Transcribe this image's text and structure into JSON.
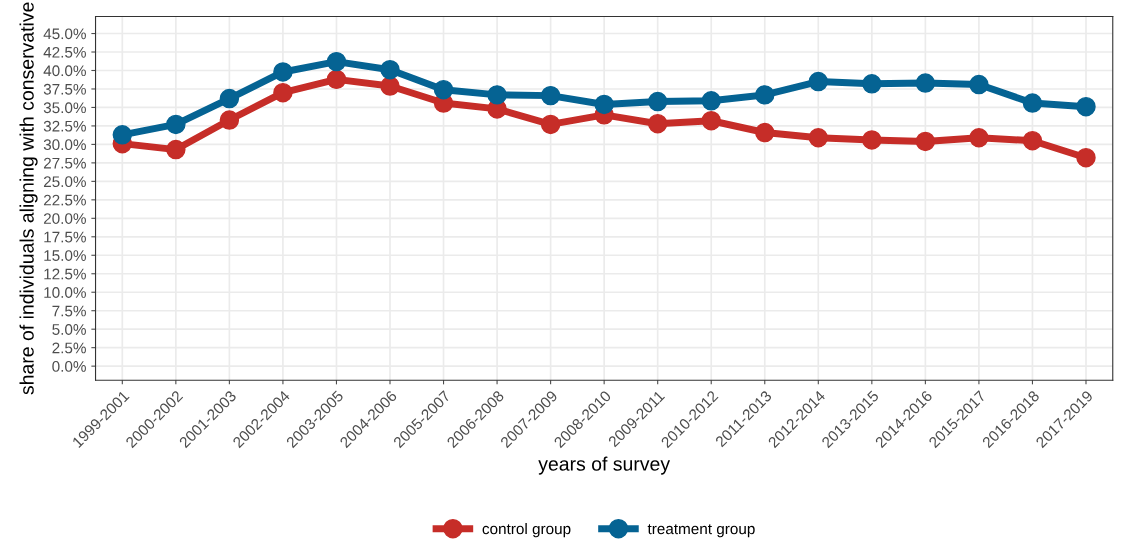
{
  "chart_data": {
    "type": "line",
    "xlabel": "years of survey",
    "ylabel": "share of individuals aligning with conservative",
    "categories": [
      "1999-2001",
      "2000-2002",
      "2001-2003",
      "2002-2004",
      "2003-2005",
      "2004-2006",
      "2005-2007",
      "2006-2008",
      "2007-2009",
      "2008-2010",
      "2009-2011",
      "2010-2012",
      "2011-2013",
      "2012-2014",
      "2013-2015",
      "2014-2016",
      "2015-2017",
      "2016-2018",
      "2017-2019"
    ],
    "series": [
      {
        "name": "control group",
        "color": "#c62d28",
        "values": [
          30.1,
          29.3,
          33.3,
          37.0,
          38.8,
          37.9,
          35.6,
          34.8,
          32.7,
          34.0,
          32.8,
          33.2,
          31.6,
          30.9,
          30.6,
          30.4,
          30.9,
          30.5,
          28.2
        ]
      },
      {
        "name": "treatment group",
        "color": "#056393",
        "values": [
          31.3,
          32.7,
          36.2,
          39.8,
          41.2,
          40.1,
          37.4,
          36.7,
          36.6,
          35.4,
          35.8,
          35.9,
          36.7,
          38.5,
          38.2,
          38.3,
          38.1,
          35.6,
          35.1
        ]
      }
    ],
    "ylim": [
      -1.9,
      47.3
    ],
    "yticks": [
      {
        "value": 0,
        "label": "0.0%"
      },
      {
        "value": 2.5,
        "label": "2.5%"
      },
      {
        "value": 5,
        "label": "5.0%"
      },
      {
        "value": 7.5,
        "label": "7.5%"
      },
      {
        "value": 10,
        "label": "10.0%"
      },
      {
        "value": 12.5,
        "label": "12.5%"
      },
      {
        "value": 15,
        "label": "15.0%"
      },
      {
        "value": 17.5,
        "label": "17.5%"
      },
      {
        "value": 20,
        "label": "20.0%"
      },
      {
        "value": 22.5,
        "label": "22.5%"
      },
      {
        "value": 25,
        "label": "25.0%"
      },
      {
        "value": 27.5,
        "label": "27.5%"
      },
      {
        "value": 30,
        "label": "30.0%"
      },
      {
        "value": 32.5,
        "label": "32.5%"
      },
      {
        "value": 35,
        "label": "35.0%"
      },
      {
        "value": 37.5,
        "label": "37.5%"
      },
      {
        "value": 40,
        "label": "40.0%"
      },
      {
        "value": 42.5,
        "label": "42.5%"
      },
      {
        "value": 45,
        "label": "45.0%"
      }
    ],
    "grid": true,
    "legend": "bottom",
    "marker": "circle",
    "line_style": "solid"
  }
}
